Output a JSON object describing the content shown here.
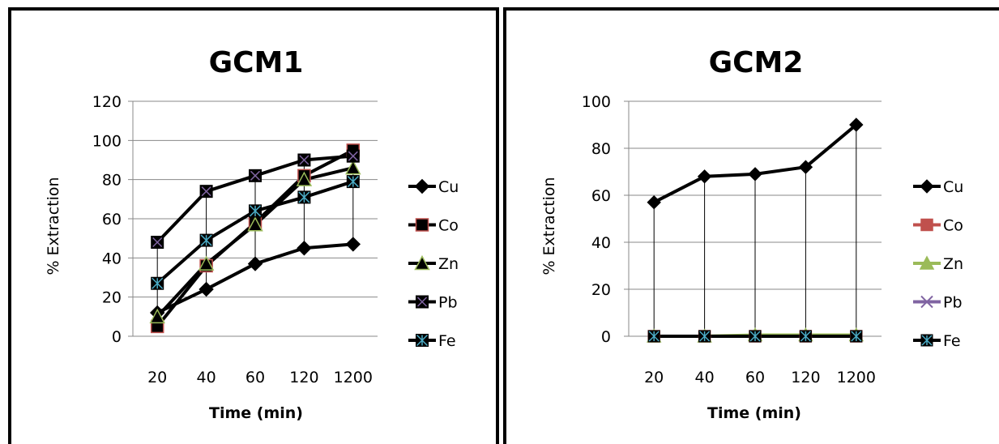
{
  "chart_data": [
    {
      "type": "line",
      "title": "GCM1",
      "xlabel": "Time (min)",
      "ylabel": "% Extraction",
      "categories": [
        "20",
        "40",
        "60",
        "120",
        "1200"
      ],
      "ylim": [
        0,
        120
      ],
      "yticks": [
        0,
        20,
        40,
        60,
        80,
        100,
        120
      ],
      "grid": "horizontal",
      "legend": "right",
      "drop_lines": true,
      "series": [
        {
          "name": "Cu",
          "color": "#000000",
          "marker": "diamond",
          "values": [
            12,
            24,
            37,
            45,
            47
          ]
        },
        {
          "name": "Co",
          "color": "#000000",
          "marker": "square",
          "marker_fill": "#000000",
          "marker_edge": "#c0504d",
          "values": [
            5,
            36,
            58,
            82,
            95
          ]
        },
        {
          "name": "Zn",
          "color": "#000000",
          "marker": "triangle",
          "marker_fill": "#000000",
          "marker_edge": "#9bbb59",
          "values": [
            10,
            37,
            57,
            80,
            86
          ]
        },
        {
          "name": "Pb",
          "color": "#000000",
          "marker": "x-box",
          "marker_fill": "#000000",
          "marker_edge": "#8064a2",
          "values": [
            48,
            74,
            82,
            90,
            92
          ]
        },
        {
          "name": "Fe",
          "color": "#000000",
          "marker": "star-box",
          "marker_fill": "#000000",
          "marker_edge": "#4bacc6",
          "values": [
            27,
            49,
            64,
            71,
            79
          ]
        }
      ]
    },
    {
      "type": "line",
      "title": "GCM2",
      "xlabel": "Time (min)",
      "ylabel": "% Extraction",
      "categories": [
        "20",
        "40",
        "60",
        "120",
        "1200"
      ],
      "ylim": [
        0,
        100
      ],
      "yticks": [
        0,
        20,
        40,
        60,
        80,
        100
      ],
      "grid": "horizontal",
      "legend": "right",
      "drop_lines": true,
      "series": [
        {
          "name": "Cu",
          "color": "#000000",
          "marker": "diamond",
          "values": [
            57,
            68,
            69,
            72,
            90
          ]
        },
        {
          "name": "Co",
          "color": "#c0504d",
          "marker": "square",
          "values": [
            0,
            0,
            0,
            0,
            0
          ]
        },
        {
          "name": "Zn",
          "color": "#9bbb59",
          "marker": "triangle",
          "values": [
            0,
            0,
            0.5,
            0.5,
            0.5
          ]
        },
        {
          "name": "Pb",
          "color": "#8064a2",
          "marker": "x",
          "values": [
            0,
            0,
            0,
            0,
            0
          ]
        },
        {
          "name": "Fe",
          "color": "#000000",
          "marker": "star-box",
          "marker_fill": "#000000",
          "marker_edge": "#4bacc6",
          "values": [
            0,
            0,
            0,
            0,
            0
          ]
        }
      ]
    }
  ]
}
